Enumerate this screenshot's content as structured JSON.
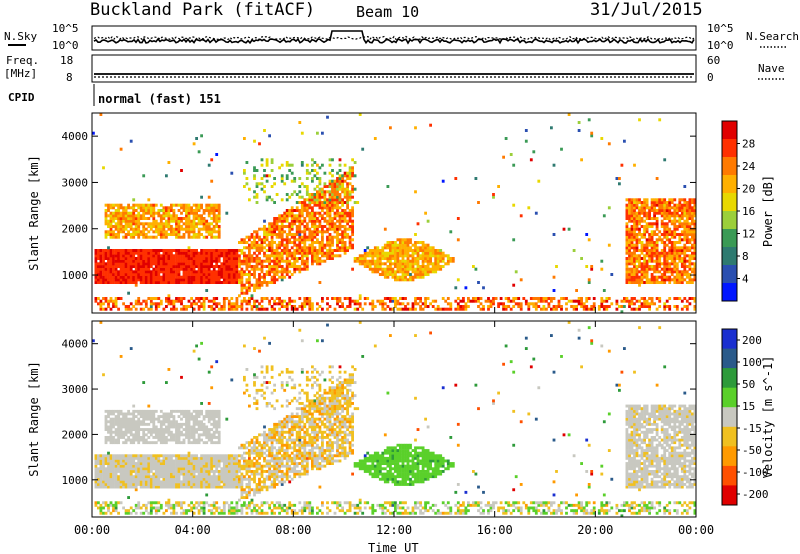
{
  "header": {
    "station": "Buckland Park (fitACF)",
    "beam": "Beam 10",
    "date": "31/Jul/2015"
  },
  "top_panel": {
    "left_label": "N.Sky",
    "right_label": "N.Search",
    "left_ticks": [
      "10^5",
      "10^0"
    ],
    "right_ticks": [
      "10^5",
      "10^0"
    ]
  },
  "freq_panel": {
    "left_label_1": "Freq.",
    "left_label_2": "[MHz]",
    "right_label": "Nave",
    "left_ticks": [
      "18",
      "8"
    ],
    "right_ticks": [
      "60",
      "0"
    ]
  },
  "cpid": {
    "label": "CPID",
    "value": "normal (fast) 151"
  },
  "chart_data": [
    {
      "type": "heatmap",
      "ylabel": "Slant Range [km]",
      "yticks": [
        1000,
        2000,
        3000,
        4000
      ],
      "ylim": [
        180,
        4500
      ],
      "xlim": [
        0,
        24
      ],
      "colorbar_label": "Power [dB]",
      "colorbar_ticks": [
        "28",
        "24",
        "20",
        "16",
        "12",
        "8",
        "4"
      ],
      "colorbar_colors": [
        "#e00000",
        "#ff3000",
        "#ff7a00",
        "#ffb000",
        "#e8d800",
        "#9bcf3a",
        "#3a9a55",
        "#2e7a70",
        "#2a4fb0",
        "#0016ff"
      ]
    },
    {
      "type": "heatmap",
      "ylabel": "Slant Range [km]",
      "yticks": [
        1000,
        2000,
        3000,
        4000
      ],
      "ylim": [
        180,
        4500
      ],
      "xlim": [
        0,
        24
      ],
      "xlabel": "Time UT",
      "xticks": [
        "00:00",
        "04:00",
        "08:00",
        "12:00",
        "16:00",
        "20:00",
        "00:00"
      ],
      "colorbar_label": "Velocity [m s^-1]",
      "colorbar_ticks": [
        "200",
        "100",
        "50",
        "15",
        "-15",
        "-50",
        "-100",
        "-200"
      ],
      "colorbar_colors": [
        "#1a2fd0",
        "#2a5a8a",
        "#2d9a3a",
        "#5ad02a",
        "#c8c8c0",
        "#f0c020",
        "#ff9a00",
        "#ff5000",
        "#e00000"
      ]
    }
  ]
}
